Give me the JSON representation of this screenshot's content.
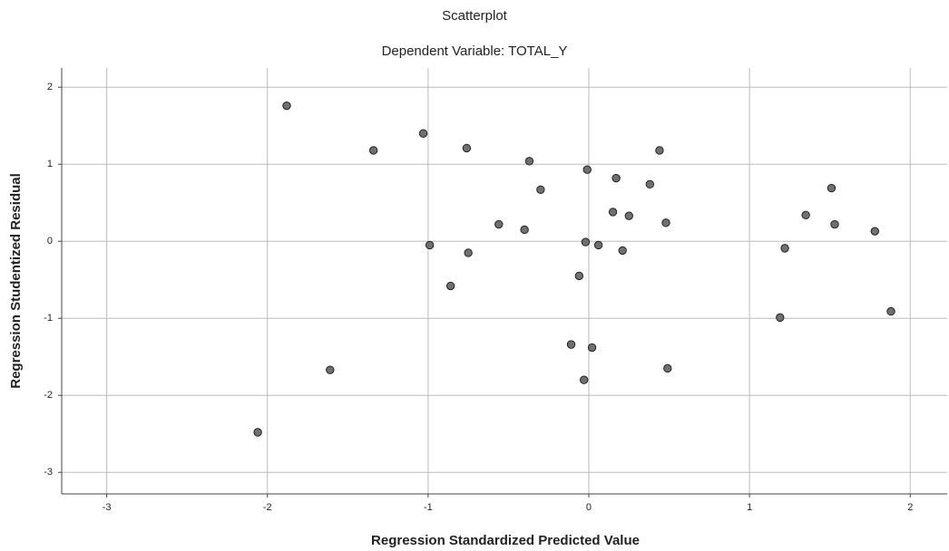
{
  "chart_data": {
    "type": "scatter",
    "title": "Scatterplot",
    "subtitle": "Dependent Variable: TOTAL_Y",
    "x_label": "Regression Standardized Predicted Value",
    "y_label": "Regression Studentized Residual",
    "x": [
      -1.88,
      -1.34,
      -1.03,
      -0.76,
      -0.37,
      -0.01,
      0.44,
      0.17,
      0.38,
      -0.3,
      0.15,
      0.25,
      0.48,
      -0.56,
      -0.4,
      -0.99,
      -0.75,
      -0.02,
      0.06,
      0.21,
      -0.06,
      -0.86,
      -0.11,
      0.02,
      0.49,
      -0.03,
      -1.61,
      -2.06,
      1.51,
      1.35,
      1.53,
      1.78,
      1.22,
      1.19,
      1.88
    ],
    "values": [
      1.76,
      1.18,
      1.4,
      1.21,
      1.04,
      0.93,
      1.18,
      0.82,
      0.74,
      0.67,
      0.38,
      0.33,
      0.24,
      0.22,
      0.15,
      -0.05,
      -0.15,
      -0.01,
      -0.05,
      -0.12,
      -0.45,
      -0.58,
      -1.34,
      -1.38,
      -1.65,
      -1.8,
      -1.67,
      -2.48,
      0.69,
      0.34,
      0.22,
      0.13,
      -0.09,
      -0.99,
      -0.91
    ],
    "color": "#707070",
    "xlim": [
      -3.28,
      2.23
    ],
    "ylim": [
      -3.28,
      2.25
    ],
    "xticks": [
      -3,
      -2,
      -1,
      0,
      1,
      2
    ],
    "yticks": [
      -3,
      -2,
      -1,
      0,
      1,
      2
    ],
    "grid": true
  }
}
